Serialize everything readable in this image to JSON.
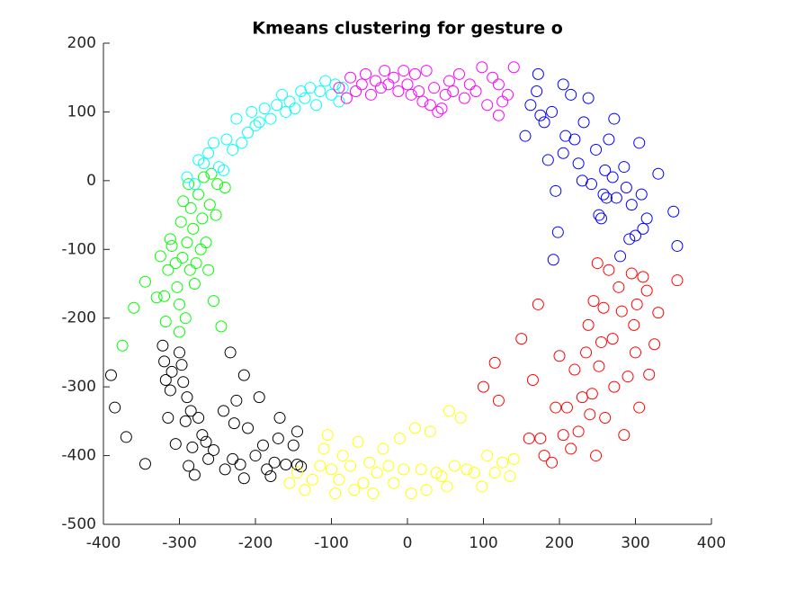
{
  "chart_data": {
    "type": "scatter",
    "title": "Kmeans clustering for gesture o",
    "xlim": [
      -400,
      400
    ],
    "ylim": [
      -500,
      200
    ],
    "xticks": [
      -400,
      -300,
      -200,
      -100,
      0,
      100,
      200,
      300,
      400
    ],
    "yticks": [
      -500,
      -400,
      -300,
      -200,
      -100,
      0,
      100,
      200
    ],
    "grid": false,
    "series": [
      {
        "color": "#000000",
        "x": [
          -390,
          -385,
          -370,
          -345,
          -322,
          -320,
          -318,
          -315,
          -312,
          -310,
          -305,
          -300,
          -297,
          -295,
          -292,
          -290,
          -288,
          -285,
          -283,
          -280,
          -275,
          -270,
          -265,
          -262,
          -255,
          -242,
          -240,
          -233,
          -230,
          -228,
          -225,
          -220,
          -215,
          -215,
          -210,
          -200,
          -195,
          -190,
          -185,
          -180,
          -175,
          -170,
          -168,
          -160,
          -150,
          -145,
          -145,
          -140
        ],
        "y": [
          -283,
          -330,
          -373,
          -412,
          -240,
          -263,
          -290,
          -345,
          -305,
          -278,
          -383,
          -250,
          -268,
          -293,
          -350,
          -315,
          -415,
          -335,
          -388,
          -428,
          -345,
          -370,
          -380,
          -405,
          -392,
          -335,
          -420,
          -250,
          -405,
          -353,
          -320,
          -413,
          -433,
          -283,
          -360,
          -400,
          -315,
          -385,
          -420,
          -430,
          -410,
          -375,
          -345,
          -413,
          -385,
          -365,
          -413,
          -416
        ]
      },
      {
        "color": "#00ff00",
        "x": [
          -375,
          -360,
          -345,
          -330,
          -325,
          -320,
          -318,
          -315,
          -312,
          -310,
          -305,
          -303,
          -300,
          -300,
          -298,
          -296,
          -295,
          -292,
          -290,
          -288,
          -286,
          -285,
          -282,
          -280,
          -278,
          -275,
          -272,
          -270,
          -268,
          -265,
          -262,
          -260,
          -258,
          -255,
          -252,
          -250,
          -245,
          -240
        ],
        "y": [
          -240,
          -185,
          -147,
          -170,
          -110,
          -168,
          -205,
          -130,
          -85,
          -95,
          -120,
          -155,
          -180,
          -220,
          -60,
          -112,
          -30,
          -200,
          -90,
          -5,
          -130,
          -40,
          -70,
          -150,
          -120,
          -20,
          -100,
          -55,
          5,
          -90,
          -130,
          -35,
          10,
          -175,
          -50,
          -5,
          -212,
          -10
        ]
      },
      {
        "color": "#00ffff",
        "x": [
          -290,
          -280,
          -275,
          -268,
          -262,
          -255,
          -248,
          -242,
          -238,
          -230,
          -225,
          -218,
          -210,
          -205,
          -200,
          -195,
          -188,
          -180,
          -172,
          -165,
          -160,
          -155,
          -148,
          -140,
          -135,
          -128,
          -120,
          -115,
          -108,
          -100,
          -95,
          -90,
          -85
        ],
        "y": [
          5,
          -5,
          30,
          25,
          40,
          55,
          20,
          15,
          60,
          45,
          90,
          55,
          70,
          100,
          80,
          85,
          105,
          90,
          110,
          125,
          100,
          115,
          105,
          130,
          120,
          135,
          110,
          130,
          145,
          125,
          140,
          115,
          135
        ]
      },
      {
        "color": "#ff00ff",
        "x": [
          -90,
          -80,
          -75,
          -68,
          -60,
          -55,
          -48,
          -42,
          -35,
          -30,
          -25,
          -18,
          -12,
          -5,
          0,
          5,
          10,
          15,
          20,
          25,
          30,
          35,
          40,
          45,
          50,
          55,
          60,
          68,
          75,
          82,
          90,
          98,
          105,
          112,
          120,
          125,
          132,
          140,
          120
        ],
        "y": [
          135,
          120,
          150,
          130,
          140,
          155,
          125,
          145,
          135,
          160,
          140,
          150,
          130,
          160,
          140,
          125,
          155,
          130,
          115,
          160,
          110,
          135,
          100,
          105,
          125,
          145,
          130,
          155,
          120,
          140,
          130,
          165,
          110,
          150,
          140,
          115,
          125,
          165,
          95
        ]
      },
      {
        "color": "#0000ff",
        "x": [
          155,
          162,
          170,
          172,
          175,
          180,
          185,
          190,
          195,
          198,
          192,
          205,
          205,
          208,
          215,
          220,
          225,
          230,
          232,
          238,
          242,
          248,
          252,
          255,
          258,
          260,
          262,
          265,
          270,
          272,
          275,
          280,
          285,
          288,
          292,
          295,
          300,
          305,
          308,
          310,
          315,
          330,
          350,
          355
        ],
        "y": [
          65,
          110,
          130,
          155,
          95,
          85,
          30,
          100,
          -15,
          -75,
          -115,
          40,
          140,
          65,
          125,
          60,
          25,
          0,
          85,
          120,
          -5,
          45,
          -50,
          -55,
          -20,
          15,
          -25,
          60,
          5,
          90,
          -25,
          -110,
          20,
          -10,
          -85,
          -35,
          -80,
          55,
          -20,
          -70,
          -55,
          10,
          -45,
          -95
        ]
      },
      {
        "color": "#ff0000",
        "x": [
          120,
          115,
          100,
          150,
          160,
          165,
          172,
          175,
          180,
          190,
          195,
          200,
          205,
          210,
          215,
          220,
          225,
          230,
          235,
          238,
          240,
          243,
          245,
          248,
          250,
          252,
          255,
          258,
          260,
          265,
          270,
          272,
          278,
          282,
          285,
          290,
          295,
          298,
          300,
          302,
          305,
          310,
          315,
          318,
          325,
          330,
          355
        ],
        "y": [
          -320,
          -265,
          -300,
          -230,
          -375,
          -290,
          -180,
          -375,
          -400,
          -410,
          -330,
          -255,
          -370,
          -330,
          -390,
          -275,
          -365,
          -315,
          -250,
          -210,
          -340,
          -310,
          -175,
          -400,
          -120,
          -270,
          -235,
          -185,
          -345,
          -130,
          -230,
          -300,
          -155,
          -190,
          -370,
          -285,
          -135,
          -210,
          -250,
          -180,
          -330,
          -140,
          -160,
          -282,
          -238,
          -192,
          -145
        ]
      },
      {
        "color": "#ffff00",
        "x": [
          -155,
          -145,
          -135,
          -125,
          -115,
          -110,
          -105,
          -100,
          -95,
          -90,
          -85,
          -75,
          -70,
          -65,
          -58,
          -50,
          -45,
          -40,
          -32,
          -25,
          -18,
          -10,
          -5,
          5,
          10,
          18,
          25,
          30,
          38,
          45,
          52,
          55,
          62,
          70,
          78,
          88,
          98,
          105,
          115,
          125,
          135,
          140
        ],
        "y": [
          -440,
          -425,
          -450,
          -435,
          -415,
          -390,
          -370,
          -420,
          -455,
          -435,
          -400,
          -415,
          -450,
          -380,
          -440,
          -410,
          -455,
          -425,
          -390,
          -415,
          -440,
          -375,
          -420,
          -455,
          -360,
          -420,
          -450,
          -365,
          -425,
          -430,
          -445,
          -335,
          -415,
          -345,
          -420,
          -425,
          -445,
          -400,
          -425,
          -410,
          -430,
          -405
        ]
      }
    ]
  }
}
